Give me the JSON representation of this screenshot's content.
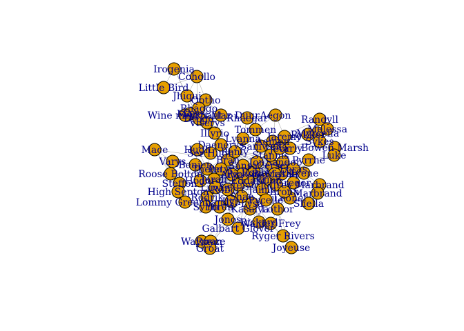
{
  "style": {
    "node_fill": "#E69F00",
    "node_stroke": "#000000",
    "label_color": "#00008B",
    "edge_color": "#9a9a9a"
  },
  "nodes": [
    {
      "id": "irogenia",
      "label": "Irogenia"
    },
    {
      "id": "cohollo",
      "label": "Cohollo"
    },
    {
      "id": "little-bird",
      "label": "Little Bird"
    },
    {
      "id": "jhiqui",
      "label": "Jhiqui"
    },
    {
      "id": "qotho",
      "label": "Qotho"
    },
    {
      "id": "rhaggo",
      "label": "Rhaggo"
    },
    {
      "id": "moro",
      "label": "Moro"
    },
    {
      "id": "mirri",
      "label": "Mirri Maz Duur"
    },
    {
      "id": "aegon",
      "label": "Aegon"
    },
    {
      "id": "wine-merchant",
      "label": "Wine merchant"
    },
    {
      "id": "rhaegar",
      "label": "Rhaegar"
    },
    {
      "id": "drogo",
      "label": "Drogo"
    },
    {
      "id": "viserys",
      "label": "Viserys"
    },
    {
      "id": "illyrio",
      "label": "Illyrio"
    },
    {
      "id": "tommen",
      "label": "Tommen"
    },
    {
      "id": "myrcella",
      "label": "Myrcella"
    },
    {
      "id": "randyll",
      "label": "Randyll"
    },
    {
      "id": "melessa",
      "label": "Melessa"
    },
    {
      "id": "rykker",
      "label": "Rykker"
    },
    {
      "id": "jaremy",
      "label": "Jaremy"
    },
    {
      "id": "sykes",
      "label": "Sykes"
    },
    {
      "id": "bowen",
      "label": "Bowen Marsh"
    },
    {
      "id": "luke",
      "label": "Luke"
    },
    {
      "id": "mace",
      "label": "Mace"
    },
    {
      "id": "varys",
      "label": "Varys"
    },
    {
      "id": "roose",
      "label": "Roose Bolton"
    },
    {
      "id": "steffon",
      "label": "Steffon"
    },
    {
      "id": "high-septon",
      "label": "High Septon"
    },
    {
      "id": "lommy",
      "label": "Lommy Greenhands"
    },
    {
      "id": "marbrand",
      "label": "Marbrand"
    },
    {
      "id": "shella",
      "label": "Shella"
    },
    {
      "id": "jonos",
      "label": "Jonos"
    },
    {
      "id": "rickard",
      "label": "Rickard"
    },
    {
      "id": "walder",
      "label": "Walder Frey"
    },
    {
      "id": "galbart",
      "label": "Galbart Glover"
    },
    {
      "id": "ryger",
      "label": "Ryger Rivers"
    },
    {
      "id": "wayman",
      "label": "Wayman"
    },
    {
      "id": "royce",
      "label": "Royce"
    },
    {
      "id": "groat",
      "label": "Groat"
    },
    {
      "id": "joyeuse",
      "label": "Joyeuse"
    },
    {
      "id": "hugh",
      "label": "Hugh"
    },
    {
      "id": "lyanna",
      "label": "Lyanna"
    },
    {
      "id": "tyene",
      "label": "Tyene"
    },
    {
      "id": "masha",
      "label": "Masha"
    },
    {
      "id": "marbrand2",
      "label": "Marbrand"
    },
    {
      "id": "leonel",
      "label": "Leonel"
    },
    {
      "id": "varly",
      "label": "Varly"
    },
    {
      "id": "kasalya",
      "label": "Kasalya"
    },
    {
      "id": "pyrrhe",
      "label": "Pyrrhe"
    },
    {
      "id": "lothor",
      "label": "Lothor"
    },
    {
      "id": "ser-hugh",
      "label": "Ser Hugh"
    },
    {
      "id": "benjen",
      "label": "Benjen"
    },
    {
      "id": "bran",
      "label": "Bran"
    },
    {
      "id": "yoren",
      "label": "Yoren"
    },
    {
      "id": "rodrik",
      "label": "Rodrik"
    },
    {
      "id": "hodor",
      "label": "Hodor"
    },
    {
      "id": "arya",
      "label": "Arya"
    },
    {
      "id": "sansa",
      "label": "Sansa"
    },
    {
      "id": "robb",
      "label": "Robb"
    },
    {
      "id": "catelyn",
      "label": "Catelyn"
    },
    {
      "id": "eddard",
      "label": "Eddard"
    },
    {
      "id": "jon",
      "label": "Jon"
    },
    {
      "id": "tyrion",
      "label": "Tyrion"
    },
    {
      "id": "cersei",
      "label": "Cersei"
    },
    {
      "id": "jaime",
      "label": "Jaime"
    },
    {
      "id": "robert",
      "label": "Robert"
    },
    {
      "id": "joffrey",
      "label": "Joffrey"
    },
    {
      "id": "petyr",
      "label": "Petyr"
    },
    {
      "id": "renly",
      "label": "Renly"
    },
    {
      "id": "stannis",
      "label": "Stannis"
    },
    {
      "id": "sandor",
      "label": "Sandor"
    },
    {
      "id": "gregor",
      "label": "Gregor"
    },
    {
      "id": "bronn",
      "label": "Bronn"
    },
    {
      "id": "shae",
      "label": "Shae"
    },
    {
      "id": "lysa",
      "label": "Lysa"
    },
    {
      "id": "jorah",
      "label": "Jorah"
    },
    {
      "id": "daenerys",
      "label": "Daenerys"
    },
    {
      "id": "samwell",
      "label": "Samwell"
    },
    {
      "id": "aemon",
      "label": "Aemon"
    },
    {
      "id": "jeor",
      "label": "Jeor"
    },
    {
      "id": "theon",
      "label": "Theon"
    },
    {
      "id": "luwin",
      "label": "Luwin"
    },
    {
      "id": "pycelle",
      "label": "Pycelle"
    },
    {
      "id": "barristan",
      "label": "Barristan"
    },
    {
      "id": "loras",
      "label": "Loras"
    },
    {
      "id": "ilyn",
      "label": "Ilyn"
    },
    {
      "id": "syrio",
      "label": "Syrio"
    },
    {
      "id": "rickon",
      "label": "Rickon"
    }
  ]
}
